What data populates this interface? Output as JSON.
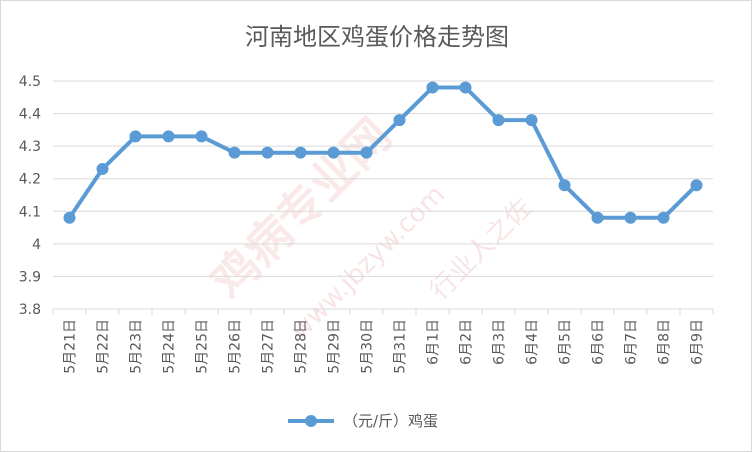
{
  "chart_data": {
    "type": "line",
    "title": "河南地区鸡蛋价格走势图",
    "categories": [
      "5月21日",
      "5月22日",
      "5月23日",
      "5月24日",
      "5月25日",
      "5月26日",
      "5月27日",
      "5月28日",
      "5月29日",
      "5月30日",
      "5月31日",
      "6月1日",
      "6月2日",
      "6月3日",
      "6月4日",
      "6月5日",
      "6月6日",
      "6月7日",
      "6月8日",
      "6月9日"
    ],
    "series": [
      {
        "name": "（元/斤）鸡蛋",
        "values": [
          4.08,
          4.23,
          4.33,
          4.33,
          4.33,
          4.28,
          4.28,
          4.28,
          4.28,
          4.28,
          4.38,
          4.48,
          4.48,
          4.38,
          4.38,
          4.18,
          4.08,
          4.08,
          4.08,
          4.18
        ]
      }
    ],
    "ylim": [
      3.8,
      4.5
    ],
    "yticks": [
      "3.8",
      "3.9",
      "4",
      "4.1",
      "4.2",
      "4.3",
      "4.4",
      "4.5"
    ],
    "grid": true,
    "legend_position": "bottom",
    "colors": {
      "line": "#5b9bd5",
      "grid": "#d9d9d9",
      "text": "#595959"
    }
  },
  "watermark": {
    "main": "鸡病专业网",
    "url": "www.jbzyw.com",
    "sub": "行业人之佐"
  }
}
